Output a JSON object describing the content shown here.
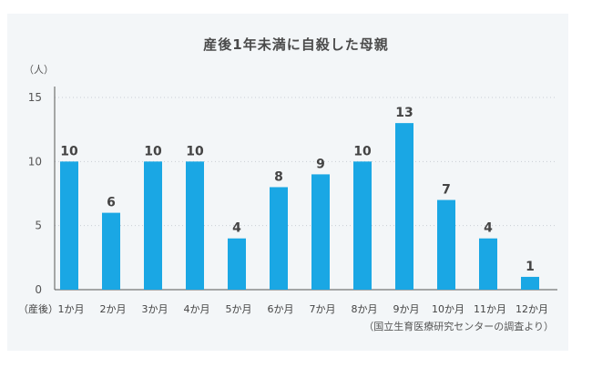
{
  "chart_data": {
    "type": "bar",
    "title": "産後1年未満に自殺した母親",
    "ylabel": "（人）",
    "xlabel_prefix": "（産後）",
    "categories": [
      "1か月",
      "2か月",
      "3か月",
      "4か月",
      "5か月",
      "6か月",
      "7か月",
      "8か月",
      "9か月",
      "10か月",
      "11か月",
      "12か月"
    ],
    "values": [
      10,
      6,
      10,
      10,
      4,
      8,
      9,
      10,
      13,
      7,
      4,
      1
    ],
    "ylim": [
      0,
      15
    ],
    "yticks": [
      0,
      5,
      10,
      15
    ],
    "grid": true,
    "bar_color": "#1aa7e4",
    "source": "（国立生育医療研究センターの調査より）"
  }
}
